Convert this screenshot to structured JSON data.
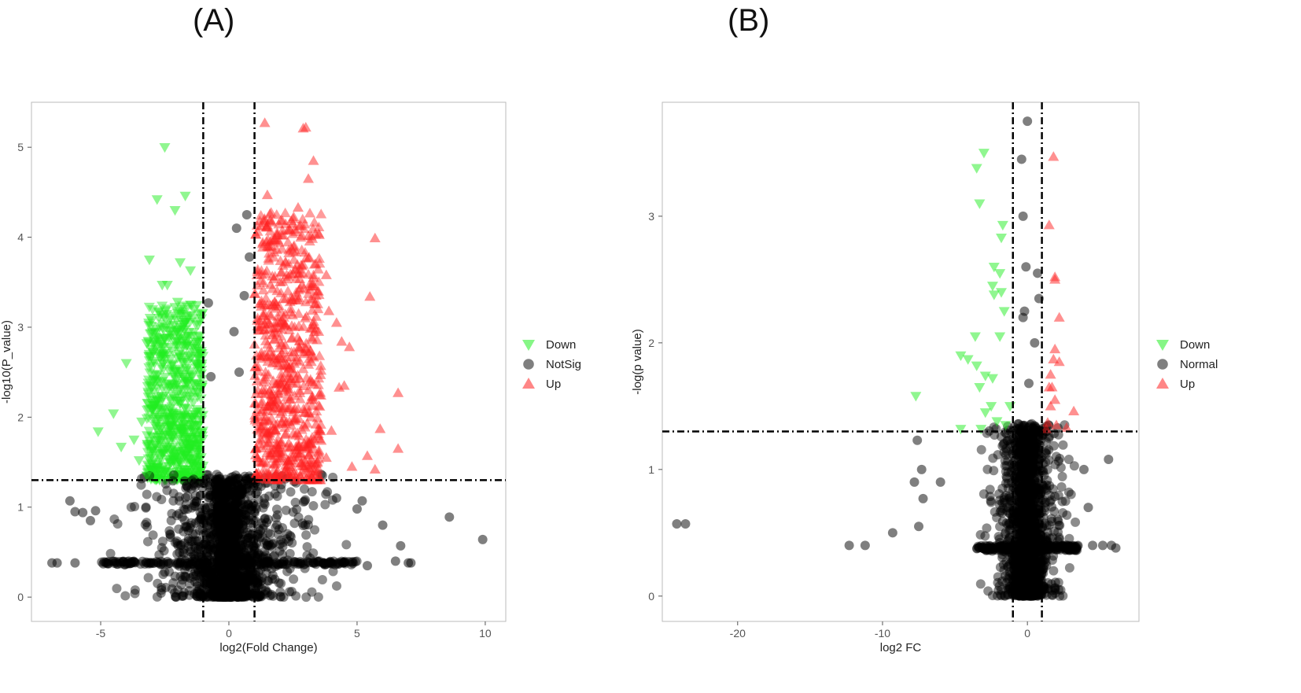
{
  "panels": [
    {
      "label": "(A)"
    },
    {
      "label": "(B)"
    }
  ],
  "colors": {
    "down": "#22ee22",
    "notsig": "#000000",
    "up": "#ff2222",
    "frame": "#bbbbbb"
  },
  "chart_data": [
    {
      "type": "scatter",
      "title": "",
      "xlabel": "log2(Fold Change)",
      "ylabel": "-log10(P_value)",
      "xlim": [
        -7.7,
        10.8
      ],
      "ylim": [
        -0.27,
        5.5
      ],
      "xticks": [
        -5,
        0,
        5,
        10
      ],
      "yticks": [
        0,
        1,
        2,
        3,
        4,
        5
      ],
      "thresholds": {
        "vlines": [
          -1,
          1
        ],
        "hline": 1.3
      },
      "grid": false,
      "legend_position": "right",
      "series": [
        {
          "name": "Down",
          "marker": "triangle-down",
          "color": "#22ee22",
          "points": [
            [
              -2.5,
              5.0
            ],
            [
              -2.8,
              4.42
            ],
            [
              -1.7,
              4.46
            ],
            [
              -2.1,
              4.3
            ],
            [
              -3.1,
              3.75
            ],
            [
              -1.9,
              3.72
            ],
            [
              -1.5,
              3.63
            ],
            [
              -2.4,
              3.47
            ],
            [
              -2.6,
              3.47
            ],
            [
              -2.0,
              3.28
            ],
            [
              -1.5,
              3.25
            ],
            [
              -1.7,
              3.05
            ],
            [
              -4.0,
              2.6
            ],
            [
              -3.2,
              2.82
            ],
            [
              -2.9,
              2.85
            ],
            [
              -4.5,
              2.04
            ],
            [
              -5.1,
              1.84
            ],
            [
              -4.2,
              1.67
            ],
            [
              -3.7,
              1.75
            ],
            [
              -3.5,
              1.52
            ],
            [
              -3.4,
              1.95
            ],
            [
              -3.2,
              1.35
            ],
            [
              -2.0,
              2.8
            ],
            [
              -2.9,
              2.6
            ],
            [
              -1.3,
              2.6
            ],
            [
              -2.6,
              2.4
            ],
            [
              -1.6,
              2.2
            ],
            [
              -2.3,
              2.1
            ],
            [
              -1.8,
              1.9
            ],
            [
              -2.7,
              1.8
            ],
            [
              -1.4,
              1.7
            ],
            [
              -2.2,
              1.6
            ],
            [
              -1.9,
              1.5
            ],
            [
              -2.5,
              1.4
            ],
            [
              -1.2,
              1.45
            ],
            [
              -3.0,
              1.65
            ],
            [
              -1.6,
              2.9
            ],
            [
              -2.1,
              2.5
            ],
            [
              -1.5,
              2.0
            ],
            [
              -2.8,
              2.2
            ],
            [
              -1.1,
              1.35
            ]
          ],
          "cloud": [
            -3.2,
            -1.0,
            1.3,
            3.25
          ]
        },
        {
          "name": "NotSig",
          "marker": "circle",
          "color": "#000000",
          "points": [
            [
              0.3,
              4.1
            ],
            [
              0.7,
              4.25
            ],
            [
              0.8,
              3.78
            ],
            [
              0.6,
              3.35
            ],
            [
              -0.8,
              3.27
            ],
            [
              0.2,
              2.95
            ],
            [
              0.4,
              2.5
            ],
            [
              -0.7,
              2.45
            ],
            [
              -6.9,
              0.38
            ],
            [
              -6.7,
              0.38
            ],
            [
              -6.0,
              0.38
            ],
            [
              -6.2,
              1.07
            ],
            [
              -6.0,
              0.95
            ],
            [
              -5.7,
              0.94
            ],
            [
              -5.2,
              0.96
            ],
            [
              -5.4,
              0.85
            ],
            [
              -4.9,
              0.37
            ],
            [
              -4.7,
              0.37
            ],
            [
              5.4,
              0.35
            ],
            [
              6.5,
              0.4
            ],
            [
              6.7,
              0.57
            ],
            [
              7.0,
              0.38
            ],
            [
              7.1,
              0.38
            ],
            [
              8.6,
              0.89
            ],
            [
              9.9,
              0.64
            ],
            [
              5.2,
              1.07
            ],
            [
              5.0,
              0.98
            ],
            [
              4.2,
              1.1
            ],
            [
              6.0,
              0.8
            ]
          ],
          "cloud": [
            -5.0,
            5.0,
            0.0,
            1.3
          ]
        },
        {
          "name": "Up",
          "marker": "triangle-up",
          "color": "#ff2222",
          "points": [
            [
              1.4,
              5.27
            ],
            [
              2.9,
              5.21
            ],
            [
              3.0,
              5.22
            ],
            [
              3.3,
              4.85
            ],
            [
              3.1,
              4.65
            ],
            [
              1.5,
              4.47
            ],
            [
              2.7,
              4.33
            ],
            [
              1.6,
              4.26
            ],
            [
              2.5,
              4.15
            ],
            [
              2.8,
              4.13
            ],
            [
              5.7,
              3.99
            ],
            [
              3.3,
              3.55
            ],
            [
              3.8,
              3.58
            ],
            [
              3.4,
              3.35
            ],
            [
              5.5,
              3.34
            ],
            [
              3.9,
              3.18
            ],
            [
              4.2,
              3.05
            ],
            [
              3.5,
              2.95
            ],
            [
              4.4,
              2.84
            ],
            [
              4.7,
              2.78
            ],
            [
              4.5,
              2.35
            ],
            [
              4.3,
              2.33
            ],
            [
              6.6,
              2.27
            ],
            [
              5.9,
              1.87
            ],
            [
              6.6,
              1.65
            ],
            [
              5.4,
              1.57
            ],
            [
              5.7,
              1.42
            ],
            [
              4.8,
              1.45
            ],
            [
              3.6,
              1.74
            ],
            [
              3.4,
              1.92
            ],
            [
              4.0,
              1.85
            ],
            [
              3.8,
              1.55
            ],
            [
              1.2,
              3.0
            ],
            [
              2.0,
              3.5
            ],
            [
              1.7,
              2.6
            ],
            [
              2.4,
              2.2
            ],
            [
              1.3,
              1.9
            ],
            [
              2.8,
              1.6
            ],
            [
              1.9,
              1.4
            ],
            [
              1.1,
              2.4
            ],
            [
              2.2,
              2.8
            ],
            [
              1.5,
              3.9
            ],
            [
              2.6,
              1.8
            ],
            [
              1.8,
              2.1
            ],
            [
              3.1,
              2.3
            ]
          ],
          "cloud": [
            1.0,
            3.6,
            1.3,
            4.3
          ]
        }
      ]
    },
    {
      "type": "scatter",
      "title": "",
      "xlabel": "log2 FC",
      "ylabel": "-log(p value)",
      "xlim": [
        -25.2,
        7.7
      ],
      "ylim": [
        -0.2,
        3.9
      ],
      "xticks": [
        -20,
        -10,
        0
      ],
      "yticks": [
        0,
        1,
        2,
        3
      ],
      "thresholds": {
        "vlines": [
          -1,
          1
        ],
        "hline": 1.3
      },
      "grid": false,
      "legend_position": "right",
      "series": [
        {
          "name": "Down",
          "marker": "triangle-down",
          "color": "#22ee22",
          "points": [
            [
              -3.0,
              3.5
            ],
            [
              -3.5,
              3.38
            ],
            [
              -3.3,
              3.1
            ],
            [
              -1.7,
              2.93
            ],
            [
              -1.8,
              2.83
            ],
            [
              -2.3,
              2.6
            ],
            [
              -1.9,
              2.55
            ],
            [
              -2.4,
              2.45
            ],
            [
              -1.8,
              2.4
            ],
            [
              -2.3,
              2.38
            ],
            [
              -1.6,
              2.25
            ],
            [
              -1.9,
              2.05
            ],
            [
              -3.6,
              2.05
            ],
            [
              -4.6,
              1.9
            ],
            [
              -4.1,
              1.87
            ],
            [
              -3.5,
              1.82
            ],
            [
              -2.9,
              1.74
            ],
            [
              -2.4,
              1.72
            ],
            [
              -3.3,
              1.65
            ],
            [
              -7.7,
              1.58
            ],
            [
              -2.5,
              1.5
            ],
            [
              -2.9,
              1.45
            ],
            [
              -2.1,
              1.38
            ],
            [
              -3.2,
              1.32
            ],
            [
              -4.6,
              1.32
            ],
            [
              -1.5,
              1.35
            ],
            [
              -1.2,
              1.5
            ]
          ],
          "cloud": null
        },
        {
          "name": "Normal",
          "marker": "circle",
          "color": "#000000",
          "points": [
            [
              0.0,
              3.75
            ],
            [
              -0.4,
              3.45
            ],
            [
              -0.3,
              3.0
            ],
            [
              -0.1,
              2.6
            ],
            [
              0.7,
              2.55
            ],
            [
              0.8,
              2.35
            ],
            [
              -0.2,
              2.25
            ],
            [
              -0.3,
              2.2
            ],
            [
              0.5,
              2.0
            ],
            [
              0.1,
              1.68
            ],
            [
              -7.6,
              1.23
            ],
            [
              -7.3,
              1.0
            ],
            [
              -7.8,
              0.9
            ],
            [
              -6.0,
              0.9
            ],
            [
              -7.2,
              0.77
            ],
            [
              -7.5,
              0.55
            ],
            [
              -9.3,
              0.5
            ],
            [
              -11.2,
              0.4
            ],
            [
              -12.3,
              0.4
            ],
            [
              -23.6,
              0.57
            ],
            [
              -24.2,
              0.57
            ],
            [
              4.5,
              0.4
            ],
            [
              5.2,
              0.4
            ],
            [
              6.1,
              0.38
            ],
            [
              5.8,
              0.4
            ],
            [
              5.6,
              1.08
            ],
            [
              4.2,
              0.7
            ],
            [
              3.9,
              1.0
            ]
          ],
          "cloud": [
            -3.5,
            3.5,
            0.0,
            1.3
          ]
        },
        {
          "name": "Up",
          "marker": "triangle-up",
          "color": "#ff2222",
          "points": [
            [
              1.8,
              3.47
            ],
            [
              1.5,
              2.93
            ],
            [
              1.9,
              2.52
            ],
            [
              1.9,
              2.5
            ],
            [
              2.2,
              2.2
            ],
            [
              1.9,
              1.95
            ],
            [
              2.2,
              1.85
            ],
            [
              1.8,
              1.87
            ],
            [
              1.6,
              1.75
            ],
            [
              1.7,
              1.65
            ],
            [
              1.9,
              1.55
            ],
            [
              1.5,
              1.65
            ],
            [
              3.2,
              1.46
            ],
            [
              1.4,
              1.37
            ],
            [
              2.0,
              1.35
            ],
            [
              1.3,
              1.32
            ],
            [
              2.7,
              1.33
            ],
            [
              1.6,
              1.5
            ]
          ],
          "cloud": null
        }
      ]
    }
  ]
}
